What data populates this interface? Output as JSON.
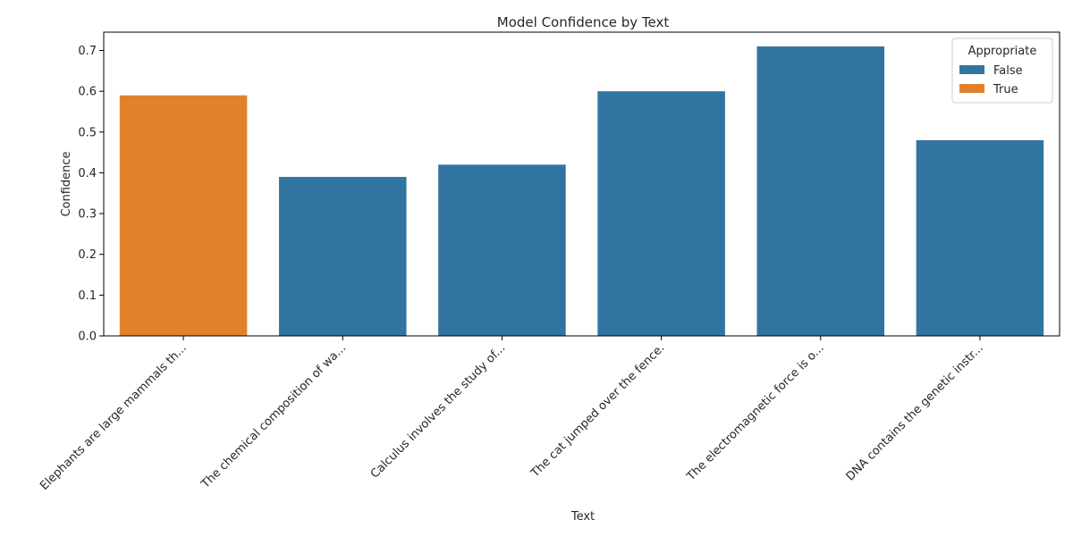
{
  "chart_data": {
    "type": "bar",
    "title": "Model Confidence by Text",
    "xlabel": "Text",
    "ylabel": "Confidence",
    "ylim": [
      0,
      0.745
    ],
    "yticks": [
      0.0,
      0.1,
      0.2,
      0.3,
      0.4,
      0.5,
      0.6,
      0.7
    ],
    "categories": [
      "Elephants are large mammals th...",
      "The chemical composition of wa...",
      "Calculus involves the study of...",
      "The cat jumped over the fence.",
      "The electromagnetic force is o...",
      "DNA contains the genetic instr..."
    ],
    "values": [
      0.59,
      0.39,
      0.42,
      0.6,
      0.71,
      0.48
    ],
    "appropriate": [
      "True",
      "False",
      "False",
      "False",
      "False",
      "False"
    ],
    "legend": {
      "title": "Appropriate",
      "placement": "top-right",
      "entries": [
        {
          "label": "False",
          "color": "#3274a1"
        },
        {
          "label": "True",
          "color": "#e1812c"
        }
      ]
    },
    "grid": false
  }
}
